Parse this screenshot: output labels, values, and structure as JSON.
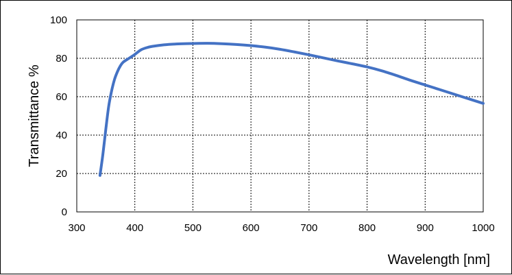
{
  "chart_data": {
    "type": "line",
    "xlabel": "Wavelength [nm]",
    "ylabel": "Transmittance %",
    "xlim": [
      300,
      1000
    ],
    "ylim": [
      0,
      100
    ],
    "x_ticks": [
      300,
      400,
      500,
      600,
      700,
      800,
      900,
      1000
    ],
    "y_ticks": [
      0,
      20,
      40,
      60,
      80,
      100
    ],
    "grid": true,
    "legend": "none",
    "series": [
      {
        "color": "#4472c4",
        "x": [
          340,
          345,
          350,
          355,
          360,
          365,
          370,
          375,
          380,
          390,
          400,
          410,
          420,
          430,
          450,
          475,
          500,
          525,
          550,
          575,
          600,
          625,
          650,
          675,
          700,
          725,
          750,
          775,
          800,
          825,
          850,
          875,
          900,
          925,
          950,
          975,
          1000
        ],
        "y": [
          19.0,
          30.0,
          43.0,
          55.0,
          63.0,
          69.0,
          73.0,
          76.0,
          78.0,
          80.0,
          82.0,
          84.3,
          85.5,
          86.2,
          87.0,
          87.5,
          87.7,
          87.8,
          87.6,
          87.2,
          86.6,
          85.8,
          84.7,
          83.3,
          81.8,
          80.2,
          78.6,
          77.1,
          75.5,
          73.5,
          71.1,
          68.5,
          66.1,
          63.7,
          61.3,
          58.9,
          56.5
        ]
      }
    ]
  }
}
